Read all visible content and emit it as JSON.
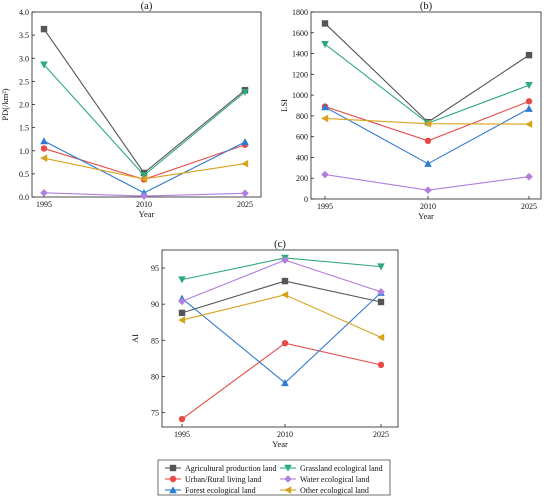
{
  "series_styles": [
    {
      "color": "#555555",
      "marker": "square"
    },
    {
      "color": "#e84a4a",
      "marker": "circle"
    },
    {
      "color": "#2e7bd1",
      "marker": "triangle-up"
    },
    {
      "color": "#2eaa7a",
      "marker": "triangle-down"
    },
    {
      "color": "#b27ee0",
      "marker": "diamond"
    },
    {
      "color": "#d8a31c",
      "marker": "triangle-left"
    }
  ],
  "legend": {
    "placement": "bottom",
    "entries": [
      "Agricultural production land",
      "Urban/Rural living land",
      "Forest ecological land",
      "Grassland ecological land",
      "Water ecological land",
      "Other ecological land"
    ]
  },
  "chart_data": [
    {
      "type": "line",
      "title": "(a)",
      "xlabel": "Year",
      "ylabel": "PD(/km²)",
      "categories": [
        "1995",
        "2010",
        "2025"
      ],
      "ylim": [
        0,
        4
      ],
      "yticks": [
        "0.0",
        "0.5",
        "1.0",
        "1.5",
        "2.0",
        "2.5",
        "3.0",
        "3.5",
        "4.0"
      ],
      "grid": false,
      "series": [
        {
          "name": "Agricultural production land",
          "values": [
            3.63,
            0.52,
            2.31
          ]
        },
        {
          "name": "Urban/Rural living land",
          "values": [
            1.05,
            0.38,
            1.13
          ]
        },
        {
          "name": "Forest ecological land",
          "values": [
            1.21,
            0.09,
            1.19
          ]
        },
        {
          "name": "Grassland ecological land",
          "values": [
            2.86,
            0.47,
            2.27
          ]
        },
        {
          "name": "Water ecological land",
          "values": [
            0.09,
            0.02,
            0.08
          ]
        },
        {
          "name": "Other ecological land",
          "values": [
            0.84,
            0.39,
            0.72
          ]
        }
      ]
    },
    {
      "type": "line",
      "title": "(b)",
      "xlabel": "Year",
      "ylabel": "LSI",
      "categories": [
        "1995",
        "2010",
        "2025"
      ],
      "ylim": [
        0,
        1800
      ],
      "yticks": [
        "0",
        "200",
        "400",
        "600",
        "800",
        "1000",
        "1200",
        "1400",
        "1600",
        "1800"
      ],
      "grid": false,
      "series": [
        {
          "name": "Agricultural production land",
          "values": [
            1690,
            740,
            1385
          ]
        },
        {
          "name": "Urban/Rural living land",
          "values": [
            890,
            560,
            940
          ]
        },
        {
          "name": "Forest ecological land",
          "values": [
            885,
            340,
            870
          ]
        },
        {
          "name": "Grassland ecological land",
          "values": [
            1490,
            730,
            1095
          ]
        },
        {
          "name": "Water ecological land",
          "values": [
            235,
            85,
            215
          ]
        },
        {
          "name": "Other ecological land",
          "values": [
            775,
            725,
            720
          ]
        }
      ]
    },
    {
      "type": "line",
      "title": "(c)",
      "xlabel": "Year",
      "ylabel": "AI",
      "categories": [
        "1995",
        "2010",
        "2025"
      ],
      "ylim": [
        73,
        97.5
      ],
      "yticks": [
        "75",
        "80",
        "85",
        "90",
        "95"
      ],
      "grid": false,
      "series": [
        {
          "name": "Agricultural production land",
          "values": [
            88.8,
            93.2,
            90.3
          ]
        },
        {
          "name": "Urban/Rural living land",
          "values": [
            74.1,
            84.6,
            81.6
          ]
        },
        {
          "name": "Forest ecological land",
          "values": [
            90.8,
            79.1,
            91.6
          ]
        },
        {
          "name": "Grassland ecological land",
          "values": [
            93.4,
            96.4,
            95.2
          ]
        },
        {
          "name": "Water ecological land",
          "values": [
            90.4,
            96.1,
            91.7
          ]
        },
        {
          "name": "Other ecological land",
          "values": [
            87.8,
            91.3,
            85.4
          ]
        }
      ]
    }
  ]
}
